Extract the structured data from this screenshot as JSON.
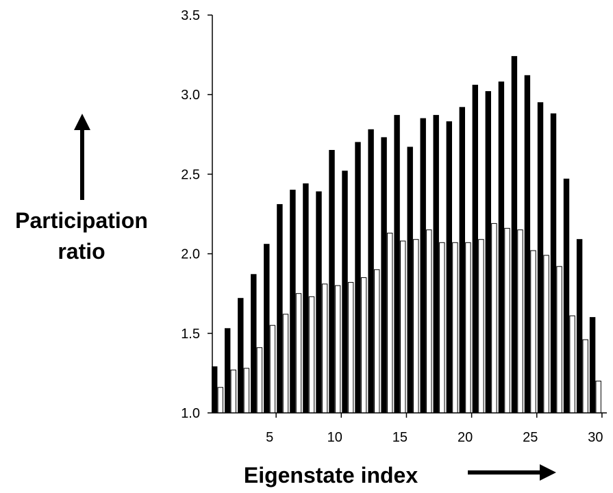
{
  "chart_data": {
    "type": "bar",
    "xlabel": "Eigenstate index",
    "ylabel_line1": "Participation",
    "ylabel_line2": "ratio",
    "ylim": [
      1.0,
      3.5
    ],
    "xlim": [
      0.5,
      30.5
    ],
    "y_ticks": [
      "1.0",
      "1.5",
      "2.0",
      "2.5",
      "3.0",
      "3.5"
    ],
    "x_ticks": [
      "5",
      "10",
      "15",
      "20",
      "25",
      "30"
    ],
    "grid": false,
    "legend": "none",
    "categories": [
      1,
      2,
      3,
      4,
      5,
      6,
      7,
      8,
      9,
      10,
      11,
      12,
      13,
      14,
      15,
      16,
      17,
      18,
      19,
      20,
      21,
      22,
      23,
      24,
      25,
      26,
      27,
      28,
      29,
      30
    ],
    "series": [
      {
        "fill": "#000000",
        "values": [
          1.29,
          1.53,
          1.72,
          1.87,
          2.06,
          2.31,
          2.4,
          2.44,
          2.39,
          2.65,
          2.52,
          2.7,
          2.78,
          2.73,
          2.87,
          2.67,
          2.85,
          2.87,
          2.83,
          2.92,
          3.06,
          3.02,
          3.08,
          3.24,
          3.12,
          2.95,
          2.88,
          2.47,
          2.09,
          1.6
        ]
      },
      {
        "fill": "#ffffff",
        "values": [
          1.16,
          1.27,
          1.28,
          1.41,
          1.55,
          1.62,
          1.75,
          1.73,
          1.81,
          1.8,
          1.82,
          1.85,
          1.9,
          2.13,
          2.08,
          2.09,
          2.15,
          2.07,
          2.07,
          2.07,
          2.09,
          2.19,
          2.16,
          2.15,
          2.02,
          1.99,
          1.92,
          1.61,
          1.46,
          1.2
        ]
      }
    ]
  }
}
